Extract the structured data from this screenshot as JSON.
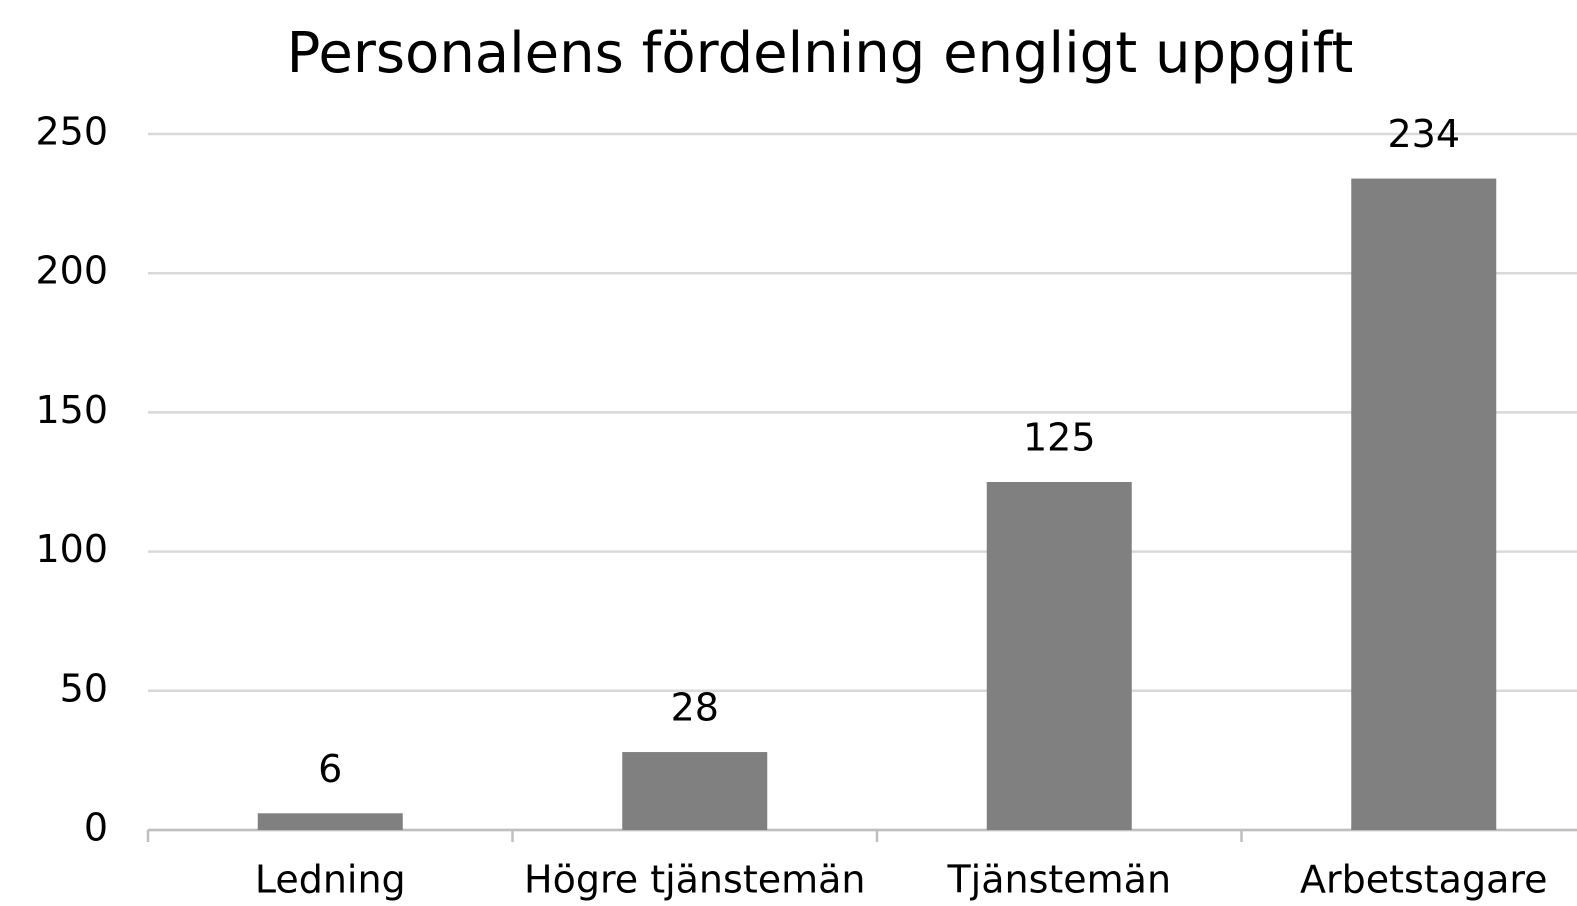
{
  "chart_data": {
    "type": "bar",
    "title": "Personalens fördelning engligt uppgift",
    "categories": [
      "Ledning",
      "Högre tjänstemän",
      "Tjänstemän",
      "Arbetstagare"
    ],
    "values": [
      6,
      28,
      125,
      234
    ],
    "color": "#808080",
    "ylim": [
      0,
      250
    ],
    "yticks": [
      0,
      50,
      100,
      150,
      200,
      250
    ],
    "grid": true,
    "data_labels": true
  }
}
